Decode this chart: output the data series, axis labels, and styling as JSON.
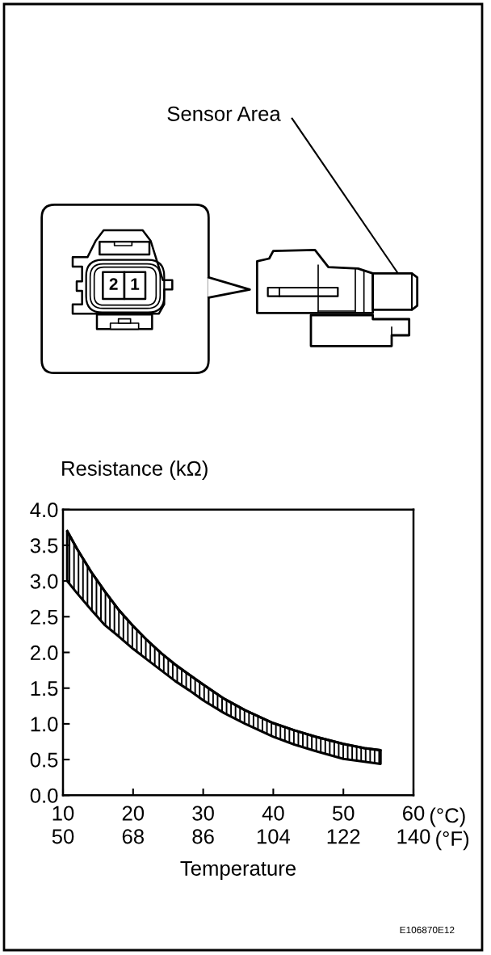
{
  "chart_data": {
    "type": "line",
    "xlabel": "Temperature",
    "ylabel": "Resistance (kΩ)",
    "x": [
      10.6,
      12,
      14,
      16,
      18,
      20,
      22,
      24,
      26,
      28,
      30,
      33,
      36,
      40,
      43,
      46,
      50,
      53,
      55.3
    ],
    "series": [
      {
        "color": "#000000",
        "values": [
          3.7,
          3.45,
          3.13,
          2.85,
          2.59,
          2.37,
          2.17,
          1.99,
          1.83,
          1.69,
          1.55,
          1.35,
          1.19,
          1.01,
          0.91,
          0.82,
          0.72,
          0.66,
          0.63
        ],
        "upper": [
          3.7,
          3.45,
          3.13,
          2.85,
          2.59,
          2.37,
          2.17,
          1.99,
          1.83,
          1.69,
          1.55,
          1.35,
          1.19,
          1.01,
          0.91,
          0.82,
          0.72,
          0.66,
          0.63
        ],
        "lower": [
          3.0,
          2.83,
          2.6,
          2.38,
          2.22,
          2.05,
          1.9,
          1.75,
          1.6,
          1.47,
          1.33,
          1.15,
          1.0,
          0.82,
          0.71,
          0.62,
          0.51,
          0.47,
          0.44
        ]
      }
    ],
    "xlim": [
      10,
      60
    ],
    "xticks": [
      10,
      20,
      30,
      40,
      50,
      60
    ],
    "x2lim": [
      50,
      140
    ],
    "x2ticks": [
      50,
      68,
      86,
      104,
      122,
      140
    ],
    "ylim": [
      0,
      4
    ],
    "yticks": [
      {
        "value": 0,
        "label": "0.0"
      },
      {
        "value": 0.5,
        "label": "0.5"
      },
      {
        "value": 1,
        "label": "1.0"
      },
      {
        "value": 1.5,
        "label": "1.5"
      },
      {
        "value": 2,
        "label": "2.0"
      },
      {
        "value": 2.5,
        "label": "2.5"
      },
      {
        "value": 3,
        "label": "3.0"
      },
      {
        "value": 3.5,
        "label": "3.5"
      },
      {
        "value": 4,
        "label": "4.0"
      }
    ],
    "annotations": [
      "Sensor Area",
      "2",
      "1",
      "(°C)",
      "(°F)",
      "E106870E12"
    ]
  }
}
